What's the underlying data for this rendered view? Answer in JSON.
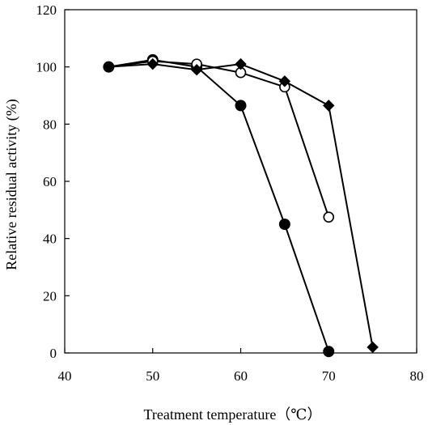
{
  "chart_data": {
    "type": "line",
    "title": "",
    "xlabel": "Treatment temperature（℃）",
    "ylabel": "Relative residual activity (%)",
    "xlim": [
      40,
      80
    ],
    "ylim": [
      0,
      120
    ],
    "xticks": [
      40,
      50,
      60,
      70,
      80
    ],
    "yticks": [
      0,
      20,
      40,
      60,
      80,
      100,
      120
    ],
    "grid": false,
    "legend": "none",
    "series": [
      {
        "marker": "filled-circle",
        "color": "#000000",
        "x": [
          45,
          50,
          55,
          60,
          65,
          70
        ],
        "y": [
          100,
          102.5,
          100,
          86.5,
          45,
          0.5
        ]
      },
      {
        "marker": "open-circle",
        "color": "#000000",
        "x": [
          45,
          50,
          55,
          60,
          65,
          70
        ],
        "y": [
          100,
          102,
          101,
          98,
          93,
          47.5
        ]
      },
      {
        "marker": "filled-diamond",
        "color": "#000000",
        "x": [
          45,
          50,
          55,
          60,
          65,
          70,
          75
        ],
        "y": [
          100,
          101,
          99,
          101,
          95,
          86.5,
          2
        ]
      }
    ]
  }
}
